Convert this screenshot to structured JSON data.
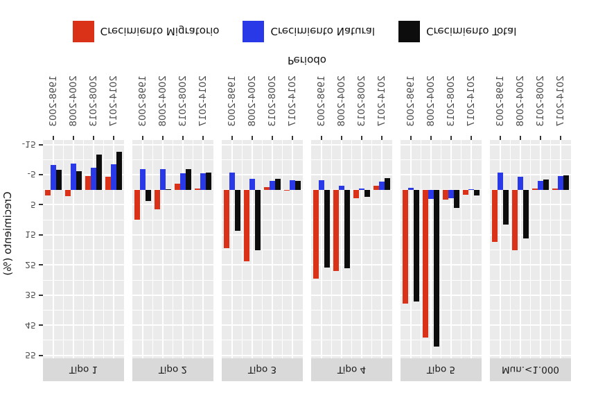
{
  "figure": {
    "background": "#ffffff",
    "render_note": "entire figure appears vertically mirrored (upside-down / water-reflected text and axes)"
  },
  "legend": {
    "position": "appears at top of flipped image (bottom of logical chart)",
    "items": [
      {
        "label": "Crecimiento Migratorio",
        "color": "#DA3119"
      },
      {
        "label": "Crecimiento Natural",
        "color": "#2939E8"
      },
      {
        "label": "Crecimiento Total",
        "color": "#0D0D0D"
      }
    ]
  },
  "chart_data": {
    "type": "bar",
    "title": "",
    "xlabel": "Periodo",
    "ylabel": "Crecimiento (%)",
    "categories": [
      "1998-2003",
      "2004-2008",
      "2008-2013",
      "2014-2017"
    ],
    "y_ticks": [
      -15,
      -5,
      5,
      15,
      25,
      35,
      45,
      55
    ],
    "ylim": [
      -16.5,
      56
    ],
    "grid": "white major+minor gridlines on #EBEBEB panels",
    "legend_position": "bottom (logical), shown mirrored at top",
    "series_names": [
      "Crecimiento Migratorio",
      "Crecimiento Natural",
      "Crecimiento Total"
    ],
    "facets": [
      {
        "label": "Tipo 1",
        "migratorio": [
          1.8,
          2.2,
          -4.5,
          -4.2
        ],
        "natural": [
          -8.2,
          -8.6,
          -7.4,
          -8.5
        ],
        "total": [
          -6.5,
          -6.2,
          -11.7,
          -12.6
        ]
      },
      {
        "label": "Tipo 2",
        "migratorio": [
          10.0,
          6.5,
          -1.9,
          -0.3
        ],
        "natural": [
          -6.8,
          -6.8,
          -5.5,
          -5.5
        ],
        "total": [
          3.7,
          -0.2,
          -6.9,
          -5.8
        ]
      },
      {
        "label": "Tipo 3",
        "migratorio": [
          19.3,
          23.8,
          -0.9,
          0.3
        ],
        "natural": [
          -5.7,
          -3.7,
          -2.9,
          -3.2
        ],
        "total": [
          13.7,
          20.2,
          -3.7,
          -2.9
        ]
      },
      {
        "label": "Tipo 4",
        "migratorio": [
          29.6,
          27.0,
          2.9,
          -1.3
        ],
        "natural": [
          -3.2,
          -1.2,
          -0.4,
          -2.6
        ],
        "total": [
          25.9,
          26.0,
          2.4,
          -3.9
        ]
      },
      {
        "label": "Tipo 5",
        "migratorio": [
          37.8,
          49.1,
          3.3,
          1.7
        ],
        "natural": [
          -0.6,
          3.0,
          2.8,
          0.1
        ],
        "total": [
          37.1,
          52.1,
          6.1,
          1.8
        ]
      },
      {
        "label": "Mun.<1.000",
        "migratorio": [
          17.4,
          20.0,
          -0.5,
          -0.3
        ],
        "natural": [
          -5.6,
          -4.3,
          -2.9,
          -4.5
        ],
        "total": [
          11.6,
          16.2,
          -3.4,
          -4.8
        ]
      }
    ],
    "panel_colors": {
      "panel_bg": "#EBEBEB",
      "strip_bg": "#D9D9D9",
      "gridline": "#FFFFFF",
      "tick_text": "#4d4d4d"
    }
  }
}
